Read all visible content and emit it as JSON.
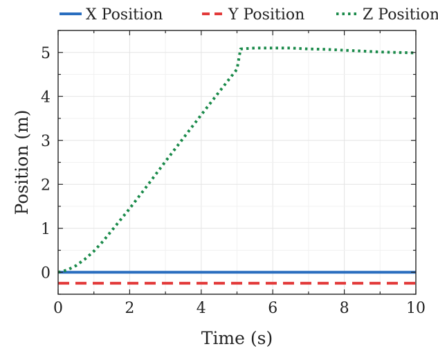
{
  "chart_data": {
    "type": "line",
    "title": "",
    "xlabel": "Time (s)",
    "ylabel": "Position (m)",
    "xlim": [
      0,
      10
    ],
    "ylim": [
      -0.5,
      5.5
    ],
    "xticks": [
      0,
      2,
      4,
      6,
      8,
      10
    ],
    "yticks": [
      0,
      1,
      2,
      3,
      4,
      5
    ],
    "grid": true,
    "legend_position": "top",
    "series": [
      {
        "name": "X Position",
        "color": "#2a6ebf",
        "style": "solid",
        "x": [
          0,
          10
        ],
        "y": [
          0,
          0
        ]
      },
      {
        "name": "Y Position",
        "color": "#e23a3a",
        "style": "dashed",
        "x": [
          0,
          10
        ],
        "y": [
          -0.25,
          -0.25
        ]
      },
      {
        "name": "Z Position",
        "color": "#1a8a4a",
        "style": "dotted",
        "x": [
          0,
          0.25,
          0.5,
          0.75,
          1.0,
          1.25,
          1.5,
          1.75,
          2.0,
          2.5,
          3.0,
          3.5,
          4.0,
          4.5,
          5.0,
          5.1,
          5.5,
          6.0,
          6.5,
          7.0,
          7.5,
          8.0,
          8.5,
          9.0,
          9.5,
          10.0
        ],
        "y": [
          0,
          0.05,
          0.15,
          0.3,
          0.48,
          0.7,
          0.95,
          1.2,
          1.45,
          1.98,
          2.52,
          3.05,
          3.58,
          4.1,
          4.62,
          5.08,
          5.1,
          5.1,
          5.1,
          5.08,
          5.07,
          5.05,
          5.03,
          5.01,
          5.0,
          4.99
        ]
      }
    ]
  }
}
